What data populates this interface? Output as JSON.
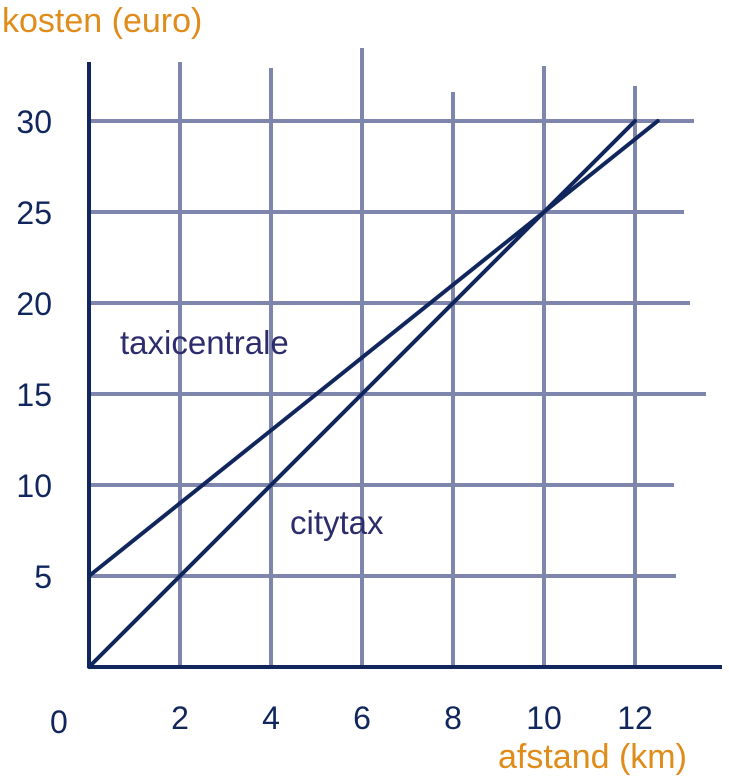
{
  "chart_data": {
    "type": "line",
    "ylabel": "kosten (euro)",
    "xlabel": "afstand (km)",
    "origin_label": "0",
    "x_ticks": [
      2,
      4,
      6,
      8,
      10,
      12
    ],
    "y_ticks": [
      5,
      10,
      15,
      20,
      25,
      30
    ],
    "xlim": [
      0,
      13.5
    ],
    "ylim": [
      0,
      33
    ],
    "grid": true,
    "series": [
      {
        "name": "taxicentrale",
        "x": [
          0,
          12.5
        ],
        "y": [
          5,
          30
        ]
      },
      {
        "name": "citytax",
        "x": [
          0,
          12
        ],
        "y": [
          0,
          30
        ]
      }
    ]
  },
  "colors": {
    "axis": "#10265c",
    "grid": "#7f86ae",
    "line": "#10265c",
    "text": "#10265c",
    "label_text": "#2d2d6e",
    "accent": "#e08c1a"
  }
}
